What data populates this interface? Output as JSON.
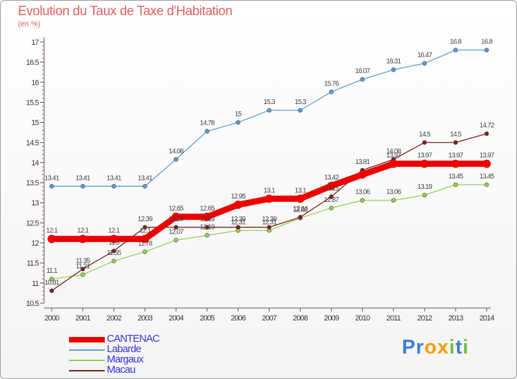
{
  "title": "Evolution du Taux de Taxe d'Habitation",
  "unit": "(en %)",
  "logo": {
    "letters": [
      "P",
      "r",
      "o",
      "x",
      "i",
      "t",
      "i"
    ],
    "colors": [
      "#3a7fd6",
      "#3a7fd6",
      "#f0a000",
      "#f0a000",
      "#6fbf3a",
      "#3a7fd6",
      "#6fbf3a"
    ]
  },
  "chart_data": {
    "type": "line",
    "x": [
      2000,
      2001,
      2002,
      2003,
      2004,
      2005,
      2006,
      2007,
      2008,
      2009,
      2010,
      2011,
      2012,
      2013,
      2014
    ],
    "ylim": [
      10.5,
      17
    ],
    "yticks": [
      "10.5",
      "11",
      "11.5",
      "12",
      "12.5",
      "13",
      "13.5",
      "14",
      "14.5",
      "15",
      "15.5",
      "16",
      "16.5",
      "17"
    ],
    "legend_position": "bottom-left",
    "grid": false,
    "series": [
      {
        "name": "CANTENAC",
        "color": "#ee0000",
        "label_color": "#3333dd",
        "values": [
          12.1,
          12.1,
          12.1,
          12.1,
          12.65,
          12.65,
          12.95,
          13.1,
          13.1,
          13.42,
          13.7,
          13.97,
          13.97,
          13.97,
          13.97
        ],
        "labels": [
          "12.1",
          "12.1",
          "12.1",
          "12.1",
          "12.65",
          "12.65",
          "12.95",
          "13.1",
          "13.1",
          "13.42",
          "",
          "13.97",
          "13.97",
          "13.97",
          "13.97"
        ]
      },
      {
        "name": "Labarde",
        "color": "#5b9bd5",
        "label_color": "#3333dd",
        "values": [
          13.41,
          13.41,
          13.41,
          13.41,
          14.08,
          14.78,
          15,
          15.3,
          15.3,
          15.76,
          16.07,
          16.31,
          16.47,
          16.8,
          16.8
        ],
        "labels": [
          "13.41",
          "13.41",
          "13.41",
          "13.41",
          "14.08",
          "14.78",
          "15",
          "15.3",
          "15.3",
          "15.76",
          "16.07",
          "16.31",
          "16.47",
          "16.8",
          "16.8"
        ]
      },
      {
        "name": "Margaux",
        "color": "#8fd14f",
        "label_color": "#3333dd",
        "values": [
          11.1,
          11.21,
          11.55,
          11.78,
          12.07,
          12.19,
          12.31,
          12.31,
          12.62,
          12.87,
          13.06,
          13.06,
          13.19,
          13.45,
          13.45
        ],
        "labels": [
          "11.1",
          "11.21",
          "11.55",
          "11.78",
          "12.07",
          "12.19",
          "12.31",
          "12.31",
          "12.62",
          "12.87",
          "13.06",
          "13.06",
          "13.19",
          "13.45",
          "13.45"
        ]
      },
      {
        "name": "Macau",
        "color": "#7a1f1f",
        "label_color": "#3333dd",
        "values": [
          10.81,
          11.35,
          11.8,
          12.39,
          12.39,
          12.39,
          12.39,
          12.39,
          12.64,
          13.15,
          13.81,
          14.08,
          14.5,
          14.5,
          14.72
        ],
        "labels": [
          "10.81",
          "11.35",
          "11.8",
          "12.39",
          "12.39",
          "12.39",
          "12.39",
          "12.39",
          "12.64",
          "13.15",
          "13.81",
          "14.08",
          "14.5",
          "14.5",
          "14.72"
        ]
      }
    ]
  }
}
